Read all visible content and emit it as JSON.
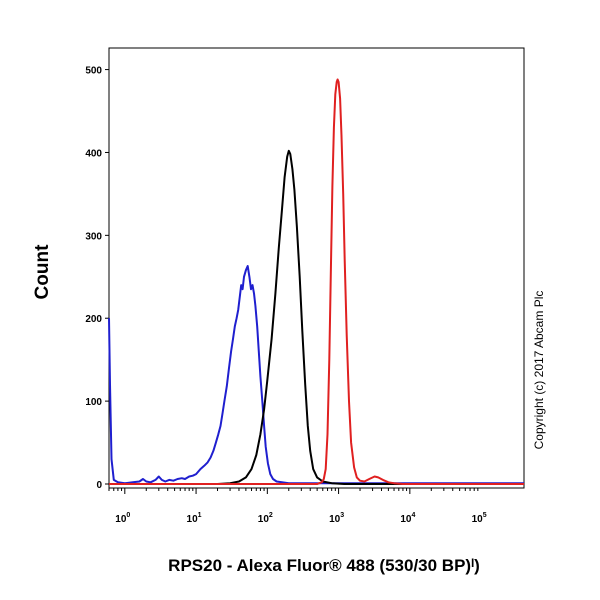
{
  "chart_data": {
    "type": "line",
    "title": "",
    "xlabel": "RPS20 - Alexa Fluor® 488 (530/30 BP)ᴵ)",
    "ylabel": "Count",
    "x_scale": "log",
    "xlim": [
      0.6,
      400000
    ],
    "ylim": [
      0,
      520
    ],
    "x_tick_labels": [
      {
        "value": 1,
        "base": "10",
        "exp": "0"
      },
      {
        "value": 10,
        "base": "10",
        "exp": "1"
      },
      {
        "value": 100,
        "base": "10",
        "exp": "2"
      },
      {
        "value": 1000,
        "base": "10",
        "exp": "3"
      },
      {
        "value": 10000,
        "base": "10",
        "exp": "4"
      },
      {
        "value": 100000,
        "base": "10",
        "exp": "5"
      }
    ],
    "y_ticks": [
      0,
      100,
      200,
      300,
      400,
      500
    ],
    "y_tick_labels": [
      "0",
      "100",
      "200",
      "300",
      "400",
      "500"
    ],
    "grid": false,
    "legend": "none",
    "annotation": "Copyright (c) 2017 Abcam Plc",
    "series": [
      {
        "color": "#1f1fcf",
        "points": [
          [
            0.6,
            200
          ],
          [
            0.62,
            120
          ],
          [
            0.65,
            30
          ],
          [
            0.7,
            5
          ],
          [
            0.8,
            2
          ],
          [
            1,
            1
          ],
          [
            1.3,
            2
          ],
          [
            1.6,
            3
          ],
          [
            1.8,
            6
          ],
          [
            2,
            3
          ],
          [
            2.3,
            2
          ],
          [
            2.7,
            5
          ],
          [
            3,
            9
          ],
          [
            3.3,
            5
          ],
          [
            3.7,
            3
          ],
          [
            4.2,
            5
          ],
          [
            4.8,
            4
          ],
          [
            5.5,
            6
          ],
          [
            6.3,
            7
          ],
          [
            7,
            6
          ],
          [
            8,
            9
          ],
          [
            9,
            10
          ],
          [
            10,
            12
          ],
          [
            11.5,
            18
          ],
          [
            13,
            22
          ],
          [
            14.5,
            26
          ],
          [
            16,
            32
          ],
          [
            17.5,
            40
          ],
          [
            19,
            50
          ],
          [
            20.5,
            60
          ],
          [
            22,
            70
          ],
          [
            23.5,
            85
          ],
          [
            25,
            100
          ],
          [
            27,
            118
          ],
          [
            29,
            140
          ],
          [
            31,
            160
          ],
          [
            33,
            175
          ],
          [
            35,
            190
          ],
          [
            37,
            200
          ],
          [
            39,
            210
          ],
          [
            41,
            225
          ],
          [
            43,
            240
          ],
          [
            45,
            235
          ],
          [
            47,
            250
          ],
          [
            50,
            258
          ],
          [
            53,
            263
          ],
          [
            56,
            250
          ],
          [
            59,
            235
          ],
          [
            62,
            240
          ],
          [
            65,
            230
          ],
          [
            68,
            215
          ],
          [
            72,
            190
          ],
          [
            76,
            160
          ],
          [
            80,
            130
          ],
          [
            85,
            100
          ],
          [
            90,
            70
          ],
          [
            95,
            45
          ],
          [
            102,
            25
          ],
          [
            110,
            12
          ],
          [
            120,
            6
          ],
          [
            135,
            3
          ],
          [
            160,
            2
          ],
          [
            200,
            1
          ],
          [
            300,
            1
          ],
          [
            400000,
            1
          ]
        ]
      },
      {
        "color": "#000000",
        "points": [
          [
            0.6,
            0
          ],
          [
            20,
            0
          ],
          [
            30,
            1
          ],
          [
            40,
            3
          ],
          [
            50,
            8
          ],
          [
            60,
            18
          ],
          [
            70,
            35
          ],
          [
            80,
            60
          ],
          [
            90,
            90
          ],
          [
            100,
            125
          ],
          [
            115,
            175
          ],
          [
            130,
            230
          ],
          [
            145,
            285
          ],
          [
            160,
            330
          ],
          [
            175,
            370
          ],
          [
            190,
            395
          ],
          [
            200,
            402
          ],
          [
            210,
            398
          ],
          [
            225,
            380
          ],
          [
            240,
            355
          ],
          [
            260,
            310
          ],
          [
            285,
            250
          ],
          [
            310,
            185
          ],
          [
            340,
            120
          ],
          [
            370,
            70
          ],
          [
            400,
            40
          ],
          [
            440,
            18
          ],
          [
            500,
            8
          ],
          [
            600,
            3
          ],
          [
            800,
            1
          ],
          [
            1200,
            0
          ],
          [
            400000,
            0
          ]
        ]
      },
      {
        "color": "#e02020",
        "points": [
          [
            0.6,
            0
          ],
          [
            500,
            0
          ],
          [
            580,
            2
          ],
          [
            620,
            6
          ],
          [
            660,
            18
          ],
          [
            700,
            60
          ],
          [
            740,
            150
          ],
          [
            780,
            260
          ],
          [
            820,
            360
          ],
          [
            860,
            430
          ],
          [
            900,
            470
          ],
          [
            940,
            485
          ],
          [
            970,
            488
          ],
          [
            1000,
            485
          ],
          [
            1050,
            465
          ],
          [
            1100,
            420
          ],
          [
            1160,
            350
          ],
          [
            1220,
            270
          ],
          [
            1300,
            180
          ],
          [
            1400,
            100
          ],
          [
            1500,
            50
          ],
          [
            1650,
            20
          ],
          [
            1800,
            8
          ],
          [
            2000,
            4
          ],
          [
            2300,
            3
          ],
          [
            2700,
            6
          ],
          [
            3200,
            9
          ],
          [
            3600,
            8
          ],
          [
            4200,
            5
          ],
          [
            5000,
            2
          ],
          [
            6000,
            1
          ],
          [
            8000,
            0
          ],
          [
            400000,
            0
          ]
        ]
      }
    ]
  }
}
